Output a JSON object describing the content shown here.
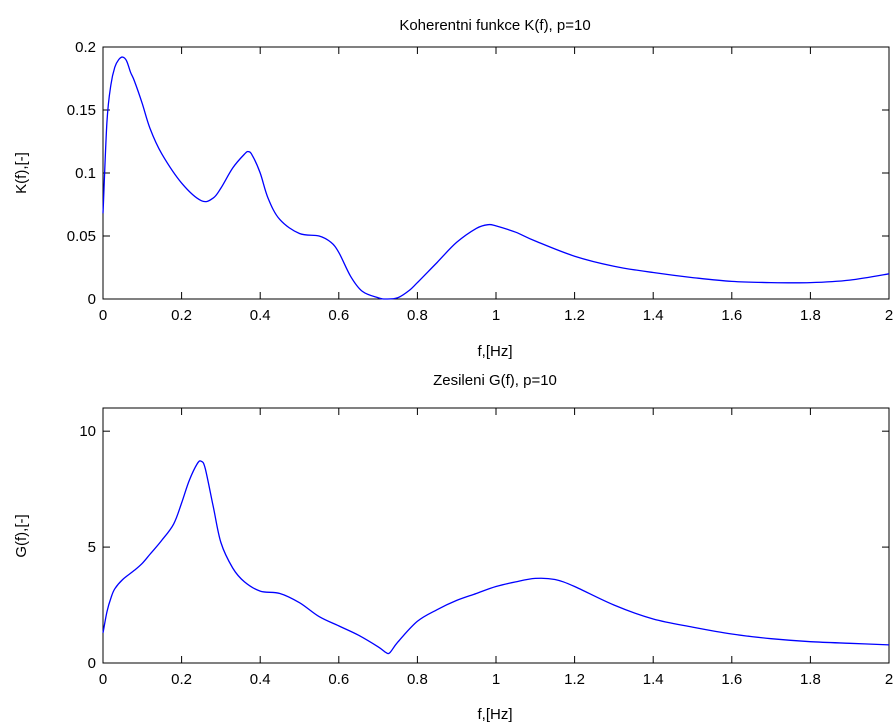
{
  "chart_data": [
    {
      "type": "line",
      "title": "Koherentni funkce K(f), p=10",
      "xlabel": "f,[Hz]",
      "ylabel": "K(f),[-]",
      "xlim": [
        0,
        2
      ],
      "ylim": [
        0,
        0.2
      ],
      "xticks": [
        0,
        0.2,
        0.4,
        0.6,
        0.8,
        1,
        1.2,
        1.4,
        1.6,
        1.8,
        2
      ],
      "xtick_labels": [
        "0",
        "0.2",
        "0.4",
        "0.6",
        "0.8",
        "1",
        "1.2",
        "1.4",
        "1.6",
        "1.8",
        "2"
      ],
      "yticks": [
        0,
        0.05,
        0.1,
        0.15,
        0.2
      ],
      "ytick_labels": [
        "0",
        "0.05",
        "0.1",
        "0.15",
        "0.2"
      ],
      "grid": false,
      "series": [
        {
          "color": "#0000ff",
          "x": [
            0,
            0.01,
            0.02,
            0.03,
            0.04,
            0.05,
            0.06,
            0.07,
            0.08,
            0.1,
            0.12,
            0.15,
            0.2,
            0.25,
            0.28,
            0.3,
            0.33,
            0.36,
            0.37,
            0.38,
            0.4,
            0.42,
            0.45,
            0.5,
            0.55,
            0.58,
            0.6,
            0.63,
            0.66,
            0.7,
            0.72,
            0.75,
            0.78,
            0.8,
            0.85,
            0.9,
            0.95,
            0.98,
            1.0,
            1.05,
            1.1,
            1.2,
            1.3,
            1.4,
            1.5,
            1.6,
            1.7,
            1.8,
            1.9,
            2.0
          ],
          "y": [
            0.068,
            0.14,
            0.17,
            0.184,
            0.19,
            0.192,
            0.189,
            0.18,
            0.173,
            0.155,
            0.135,
            0.115,
            0.092,
            0.078,
            0.08,
            0.088,
            0.104,
            0.115,
            0.117,
            0.114,
            0.1,
            0.08,
            0.063,
            0.052,
            0.05,
            0.045,
            0.037,
            0.018,
            0.006,
            0.001,
            0.0,
            0.001,
            0.007,
            0.013,
            0.029,
            0.045,
            0.056,
            0.059,
            0.058,
            0.053,
            0.046,
            0.034,
            0.026,
            0.021,
            0.017,
            0.014,
            0.013,
            0.013,
            0.015,
            0.02
          ]
        }
      ]
    },
    {
      "type": "line",
      "title": "Zesileni G(f), p=10",
      "xlabel": "f,[Hz]",
      "ylabel": "G(f),[-]",
      "xlim": [
        0,
        2
      ],
      "ylim": [
        0,
        11
      ],
      "xticks": [
        0,
        0.2,
        0.4,
        0.6,
        0.8,
        1,
        1.2,
        1.4,
        1.6,
        1.8,
        2
      ],
      "xtick_labels": [
        "0",
        "0.2",
        "0.4",
        "0.6",
        "0.8",
        "1",
        "1.2",
        "1.4",
        "1.6",
        "1.8",
        "2"
      ],
      "yticks": [
        0,
        5,
        10
      ],
      "ytick_labels": [
        "0",
        "5",
        "10"
      ],
      "grid": false,
      "series": [
        {
          "color": "#0000ff",
          "x": [
            0,
            0.01,
            0.02,
            0.03,
            0.05,
            0.08,
            0.1,
            0.12,
            0.15,
            0.18,
            0.2,
            0.22,
            0.24,
            0.25,
            0.26,
            0.28,
            0.3,
            0.33,
            0.36,
            0.4,
            0.45,
            0.5,
            0.55,
            0.6,
            0.65,
            0.7,
            0.72,
            0.73,
            0.75,
            0.8,
            0.85,
            0.9,
            0.95,
            1.0,
            1.05,
            1.1,
            1.15,
            1.2,
            1.3,
            1.4,
            1.5,
            1.6,
            1.7,
            1.8,
            1.9,
            2.0
          ],
          "y": [
            1.3,
            2.2,
            2.8,
            3.2,
            3.6,
            4.0,
            4.3,
            4.7,
            5.3,
            6.0,
            6.9,
            7.9,
            8.6,
            8.7,
            8.4,
            6.8,
            5.2,
            4.1,
            3.5,
            3.1,
            3.0,
            2.6,
            2.0,
            1.6,
            1.2,
            0.7,
            0.45,
            0.45,
            0.9,
            1.8,
            2.3,
            2.7,
            3.0,
            3.3,
            3.5,
            3.65,
            3.6,
            3.3,
            2.5,
            1.9,
            1.55,
            1.25,
            1.05,
            0.92,
            0.85,
            0.78
          ]
        }
      ]
    }
  ]
}
